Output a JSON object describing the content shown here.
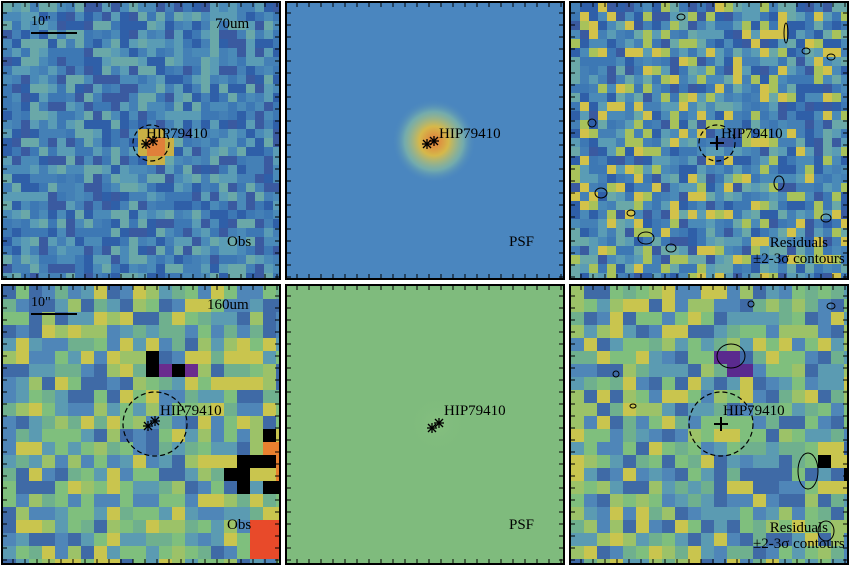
{
  "colors": {
    "noise_70": [
      "#3d78b4",
      "#4a8ab8",
      "#5a9cb5",
      "#2f5fa8",
      "#6aa8a8",
      "#3a5aa0",
      "#4480b6"
    ],
    "noise_160": [
      "#4f86b8",
      "#6fb08e",
      "#9cc268",
      "#5b9bb2",
      "#3f6aa6",
      "#c9c54e",
      "#7fbf7d"
    ],
    "psf70_bg": "#4a86bf",
    "psf160_bg": "#7fbb7d"
  },
  "panels": [
    {
      "id": "p1",
      "target": "HIP79410",
      "band": "70um",
      "scalebar": "10\"",
      "corner": "Obs"
    },
    {
      "id": "p2",
      "target": "HIP79410",
      "corner": "PSF"
    },
    {
      "id": "p3",
      "target": "HIP79410",
      "residual_line1": "Residuals",
      "residual_line2": "±2-3σ contours"
    },
    {
      "id": "p4",
      "target": "HIP79410",
      "band": "160um",
      "scalebar": "10\"",
      "corner": "Obs"
    },
    {
      "id": "p5",
      "target": "HIP79410",
      "corner": "PSF"
    },
    {
      "id": "p6",
      "target": "HIP79410",
      "residual_line1": "Residuals",
      "residual_line2": "±2-3σ contours"
    }
  ]
}
